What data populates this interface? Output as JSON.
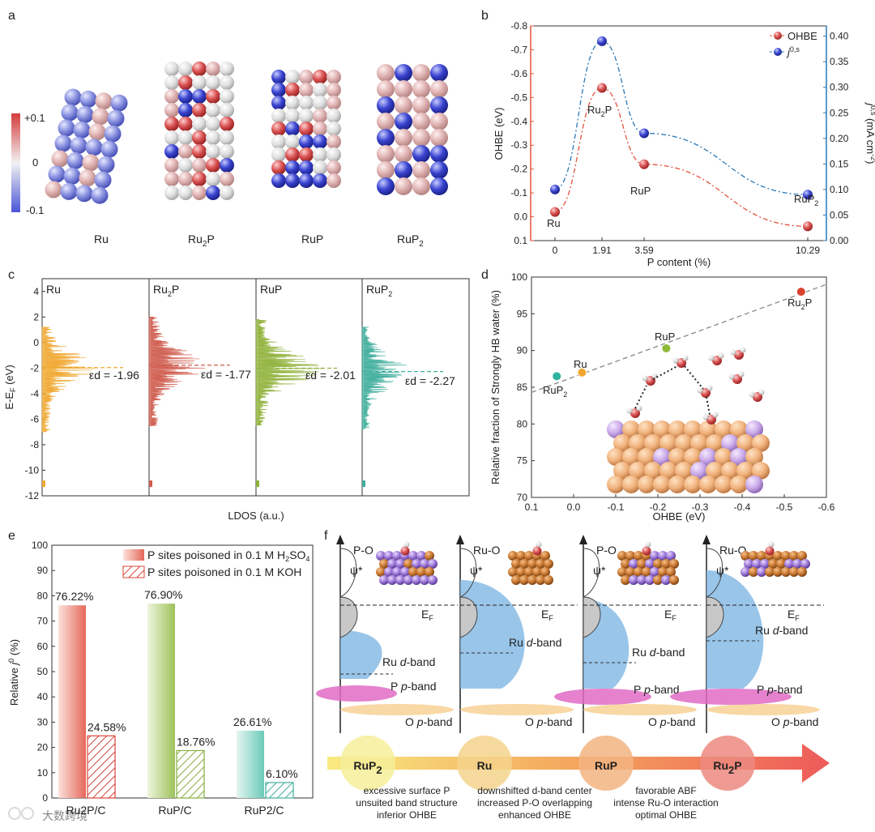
{
  "panels": {
    "a": "a",
    "b": "b",
    "c": "c",
    "d": "d",
    "e": "e",
    "f": "f"
  },
  "panel_a": {
    "colorbar": {
      "max": "+0.1",
      "mid": "0",
      "min": "-0.1"
    },
    "structures": [
      "Ru",
      "Ru2P",
      "RuP",
      "RuP2"
    ]
  },
  "panel_b": {
    "legend_ohbe": "OHBE",
    "legend_j": "j0,s",
    "ylabel_left": "OHBE (eV)",
    "ylabel_right": "j0,s (mA cm-2)",
    "xlabel": "P content (%)",
    "labels": {
      "ru": "Ru",
      "ru2p": "Ru2P",
      "rup": "RuP",
      "rup2": "RuP2"
    }
  },
  "panel_c": {
    "ylabel": "E-EF (eV)",
    "xlabel": "LDOS (a.u.)",
    "columns": [
      {
        "name": "Ru",
        "ed": "εd = -1.96",
        "color": "#f0a830"
      },
      {
        "name": "Ru2P",
        "ed": "εd = -1.77",
        "color": "#cf5b4d"
      },
      {
        "name": "RuP",
        "ed": "εd = -2.01",
        "color": "#8fb23a"
      },
      {
        "name": "RuP2",
        "ed": "εd = -2.27",
        "color": "#3fae9c"
      }
    ]
  },
  "panel_d": {
    "ylabel": "Relative fraction of Strongly HB water (%)",
    "xlabel": "OHBE (eV)",
    "labels": {
      "ru2p": "Ru2P",
      "rup": "RuP",
      "ru": "Ru",
      "rup2": "RuP2"
    }
  },
  "panel_e": {
    "legend_1": "P sites poisoned in 0.1 M H2SO4",
    "legend_2": "P sites poisoned in 0.1 M KOH",
    "ylabel": "Relative j0 (%)"
  },
  "panel_f": {
    "columns": [
      {
        "top": "P-O",
        "ef": "EF",
        "dband": "Ru d-band",
        "pband": "P p-band",
        "oband": "O p-band",
        "psi": "ψ*"
      },
      {
        "top": "Ru-O",
        "ef": "EF",
        "dband": "Ru d-band",
        "pband": "",
        "oband": "O p-band",
        "psi": "ψ*"
      },
      {
        "top": "P-O",
        "ef": "EF",
        "dband": "Ru d-band",
        "pband": "P p-band",
        "oband": "O p-band",
        "psi": "ψ*"
      },
      {
        "top": "Ru-O",
        "ef": "EF",
        "dband": "Ru d-band",
        "pband": "P p-band",
        "oband": "O p-band",
        "psi": "ψ*"
      }
    ],
    "circles": [
      "RuP2",
      "Ru",
      "RuP",
      "Ru2P"
    ],
    "captions": [
      [
        "excessive surface P",
        "unsuited band structure",
        "inferior OHBE"
      ],
      [
        "downshifted d-band center",
        "increased P-O overlapping",
        "enhanced OHBE"
      ],
      [
        "favorable ABF",
        "intense Ru-O interaction",
        "optimal OHBE"
      ]
    ]
  },
  "watermark": "大数跨境",
  "chart_data": [
    {
      "type": "line",
      "panel": "b",
      "x_labels": [
        "0",
        "1.91",
        "3.59",
        "10.29"
      ],
      "xlabel": "P content (%)",
      "series": [
        {
          "name": "OHBE",
          "axis": "left",
          "x": [
            0,
            1.91,
            3.59,
            10.29
          ],
          "values": [
            -0.02,
            -0.54,
            -0.22,
            0.04
          ],
          "color": "#e0533a"
        },
        {
          "name": "j0,s",
          "axis": "right",
          "x": [
            0,
            1.91,
            3.59,
            10.29
          ],
          "values": [
            0.1,
            0.39,
            0.21,
            0.09
          ],
          "color": "#2878b8"
        }
      ],
      "ylabel_left": "OHBE (eV)",
      "ylim_left": [
        0.1,
        -0.8
      ],
      "left_ticks": [
        "-0.8",
        "-0.7",
        "-0.6",
        "-0.5",
        "-0.4",
        "-0.3",
        "-0.2",
        "-0.1",
        "0.0",
        "0.1"
      ],
      "ylabel_right": "j0,s (mA cm-2)",
      "ylim_right": [
        0.0,
        0.42
      ],
      "right_ticks": [
        "0.40",
        "0.35",
        "0.30",
        "0.25",
        "0.20",
        "0.15",
        "0.10",
        "0.05",
        "0.00"
      ]
    },
    {
      "type": "area",
      "panel": "c",
      "ylabel": "E-EF (eV)",
      "ylim": [
        -12,
        5
      ],
      "y_ticks": [
        "4",
        "2",
        "0",
        "-2",
        "-4",
        "-6",
        "-8",
        "-10",
        "-12"
      ],
      "d_band_centers": [
        {
          "name": "Ru",
          "value": -1.96
        },
        {
          "name": "Ru2P",
          "value": -1.77
        },
        {
          "name": "RuP",
          "value": -2.01
        },
        {
          "name": "RuP2",
          "value": -2.27
        }
      ]
    },
    {
      "type": "scatter",
      "panel": "d",
      "xlabel": "OHBE (eV)",
      "xlim": [
        0.1,
        -0.6
      ],
      "x_ticks": [
        "0.1",
        "0.0",
        "-0.1",
        "-0.2",
        "-0.3",
        "-0.4",
        "-0.5",
        "-0.6"
      ],
      "ylabel": "Relative fraction of Strongly HB water (%)",
      "ylim": [
        70,
        100
      ],
      "y_ticks": [
        "100",
        "95",
        "90",
        "85",
        "80",
        "75",
        "70"
      ],
      "points": [
        {
          "name": "RuP2",
          "x": 0.04,
          "y": 86.5,
          "color": "#2fb4a0"
        },
        {
          "name": "Ru",
          "x": -0.02,
          "y": 87.0,
          "color": "#f0a830"
        },
        {
          "name": "RuP",
          "x": -0.22,
          "y": 90.3,
          "color": "#8fba38"
        },
        {
          "name": "Ru2P",
          "x": -0.54,
          "y": 98.0,
          "color": "#d9402f"
        }
      ],
      "fit": "linear dashed"
    },
    {
      "type": "bar",
      "panel": "e",
      "categories": [
        "Ru2P/C",
        "RuP/C",
        "RuP2/C"
      ],
      "series": [
        {
          "name": "P sites poisoned in 0.1 M H2SO4",
          "values": [
            76.22,
            76.9,
            26.61
          ],
          "labels": [
            "76.22%",
            "76.90%",
            "26.61%"
          ]
        },
        {
          "name": "P sites poisoned in 0.1 M KOH",
          "values": [
            24.58,
            18.76,
            6.1
          ],
          "labels": [
            "24.58%",
            "18.76%",
            "6.10%"
          ]
        }
      ],
      "ylabel": "Relative j0 (%)",
      "ylim": [
        0,
        100
      ],
      "y_ticks": [
        "100",
        "90",
        "80",
        "70",
        "60",
        "50",
        "40",
        "30",
        "20",
        "10",
        "0"
      ]
    }
  ]
}
